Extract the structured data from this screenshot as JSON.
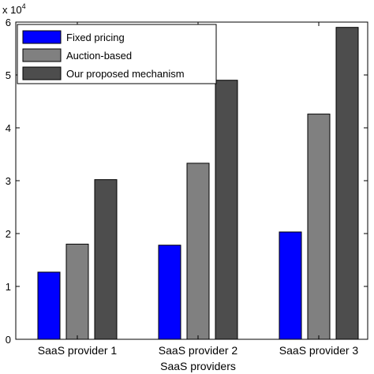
{
  "chart_data": {
    "type": "bar",
    "categories": [
      "SaaS provider 1",
      "SaaS provider 2",
      "SaaS provider 3"
    ],
    "series": [
      {
        "name": "Fixed pricing",
        "values": [
          1.27,
          1.78,
          2.03
        ],
        "color": "#0000ff"
      },
      {
        "name": "Auction-based",
        "values": [
          1.8,
          3.33,
          4.26
        ],
        "color": "#808080"
      },
      {
        "name": "Our proposed mechanism",
        "values": [
          3.02,
          4.9,
          5.9
        ],
        "color": "#4d4d4d"
      }
    ],
    "ylim": [
      0,
      6
    ],
    "yticks": [
      "0",
      "1",
      "2",
      "3",
      "4",
      "5",
      "6"
    ],
    "y_multiplier": {
      "base": "x 10",
      "exponent": "4"
    },
    "xlabel": "SaaS providers",
    "ylabel": "",
    "title": "",
    "legend_position": "top-left",
    "grid": false
  }
}
